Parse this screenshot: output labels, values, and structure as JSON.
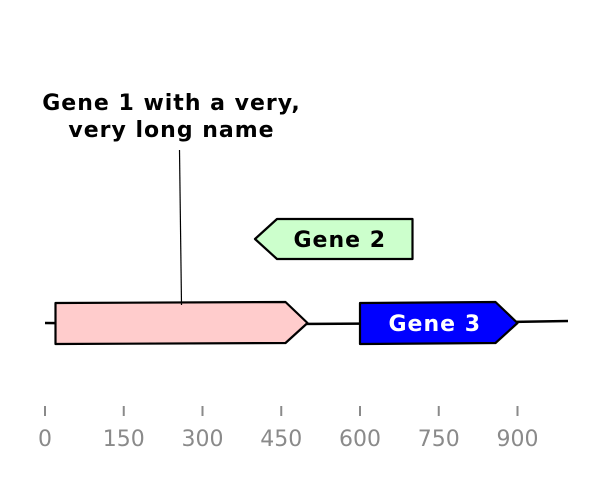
{
  "chart_data": {
    "type": "gene-map",
    "title": "",
    "axis": {
      "range": [
        0,
        1000
      ],
      "ticks": [
        0,
        150,
        300,
        450,
        600,
        750,
        900
      ],
      "tick_labels": [
        "0",
        "150",
        "300",
        "450",
        "600",
        "750",
        "900"
      ]
    },
    "features": [
      {
        "label": "Gene 1 with a very,\nvery long name",
        "label_lines": [
          "Gene 1 with a very,",
          "very long name"
        ],
        "start": 20,
        "end": 500,
        "strand": 1,
        "color": "#ffcccc",
        "text_color": "#000000",
        "label_outside": true
      },
      {
        "label": "Gene 2",
        "start": 400,
        "end": 700,
        "strand": -1,
        "color": "#ccffcc",
        "text_color": "#000000",
        "label_outside": false
      },
      {
        "label": "Gene 3",
        "start": 600,
        "end": 900,
        "strand": 1,
        "color": "#0000ff",
        "text_color": "#ffffff",
        "label_outside": false
      }
    ]
  }
}
